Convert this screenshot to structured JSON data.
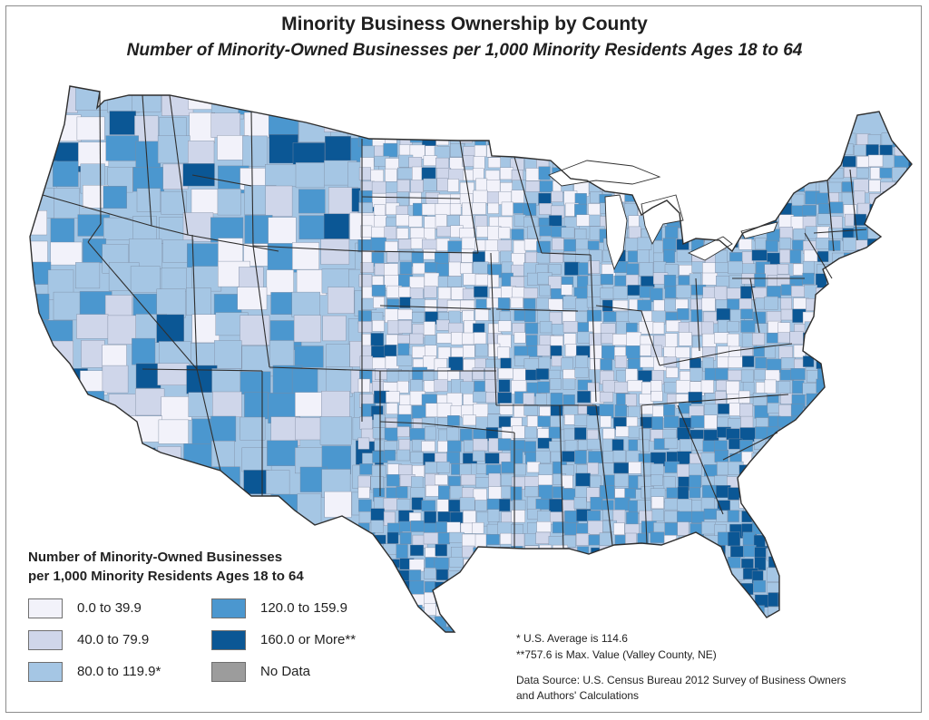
{
  "title": "Minority Business Ownership by County",
  "subtitle": "Number of Minority-Owned Businesses per 1,000 Minority Residents Ages 18 to 64",
  "legend": {
    "title_line1": "Number of Minority-Owned Businesses",
    "title_line2": "per 1,000 Minority Residents Ages 18 to 64",
    "classes": [
      {
        "label": "0.0 to 39.9",
        "color": "#f2f2fa"
      },
      {
        "label": "40.0 to 79.9",
        "color": "#cfd6ea"
      },
      {
        "label": "80.0 to 119.9*",
        "color": "#a5c6e4"
      },
      {
        "label": "120.0 to 159.9",
        "color": "#4b97cf"
      },
      {
        "label": "160.0 or More**",
        "color": "#0b5795"
      },
      {
        "label": "No Data",
        "color": "#9c9c9c"
      }
    ]
  },
  "notes": {
    "us_average": "*  U.S. Average is 114.6",
    "max_value": "**757.6 is Max. Value (Valley County, NE)",
    "source_line1": "Data Source: U.S. Census Bureau 2012 Survey of Business Owners",
    "source_line2": "and Authors' Calculations"
  },
  "map_colors": {
    "base": "#a5c6e4",
    "state_border": "#2f2f2f",
    "county_border": "#7d8aa0"
  }
}
